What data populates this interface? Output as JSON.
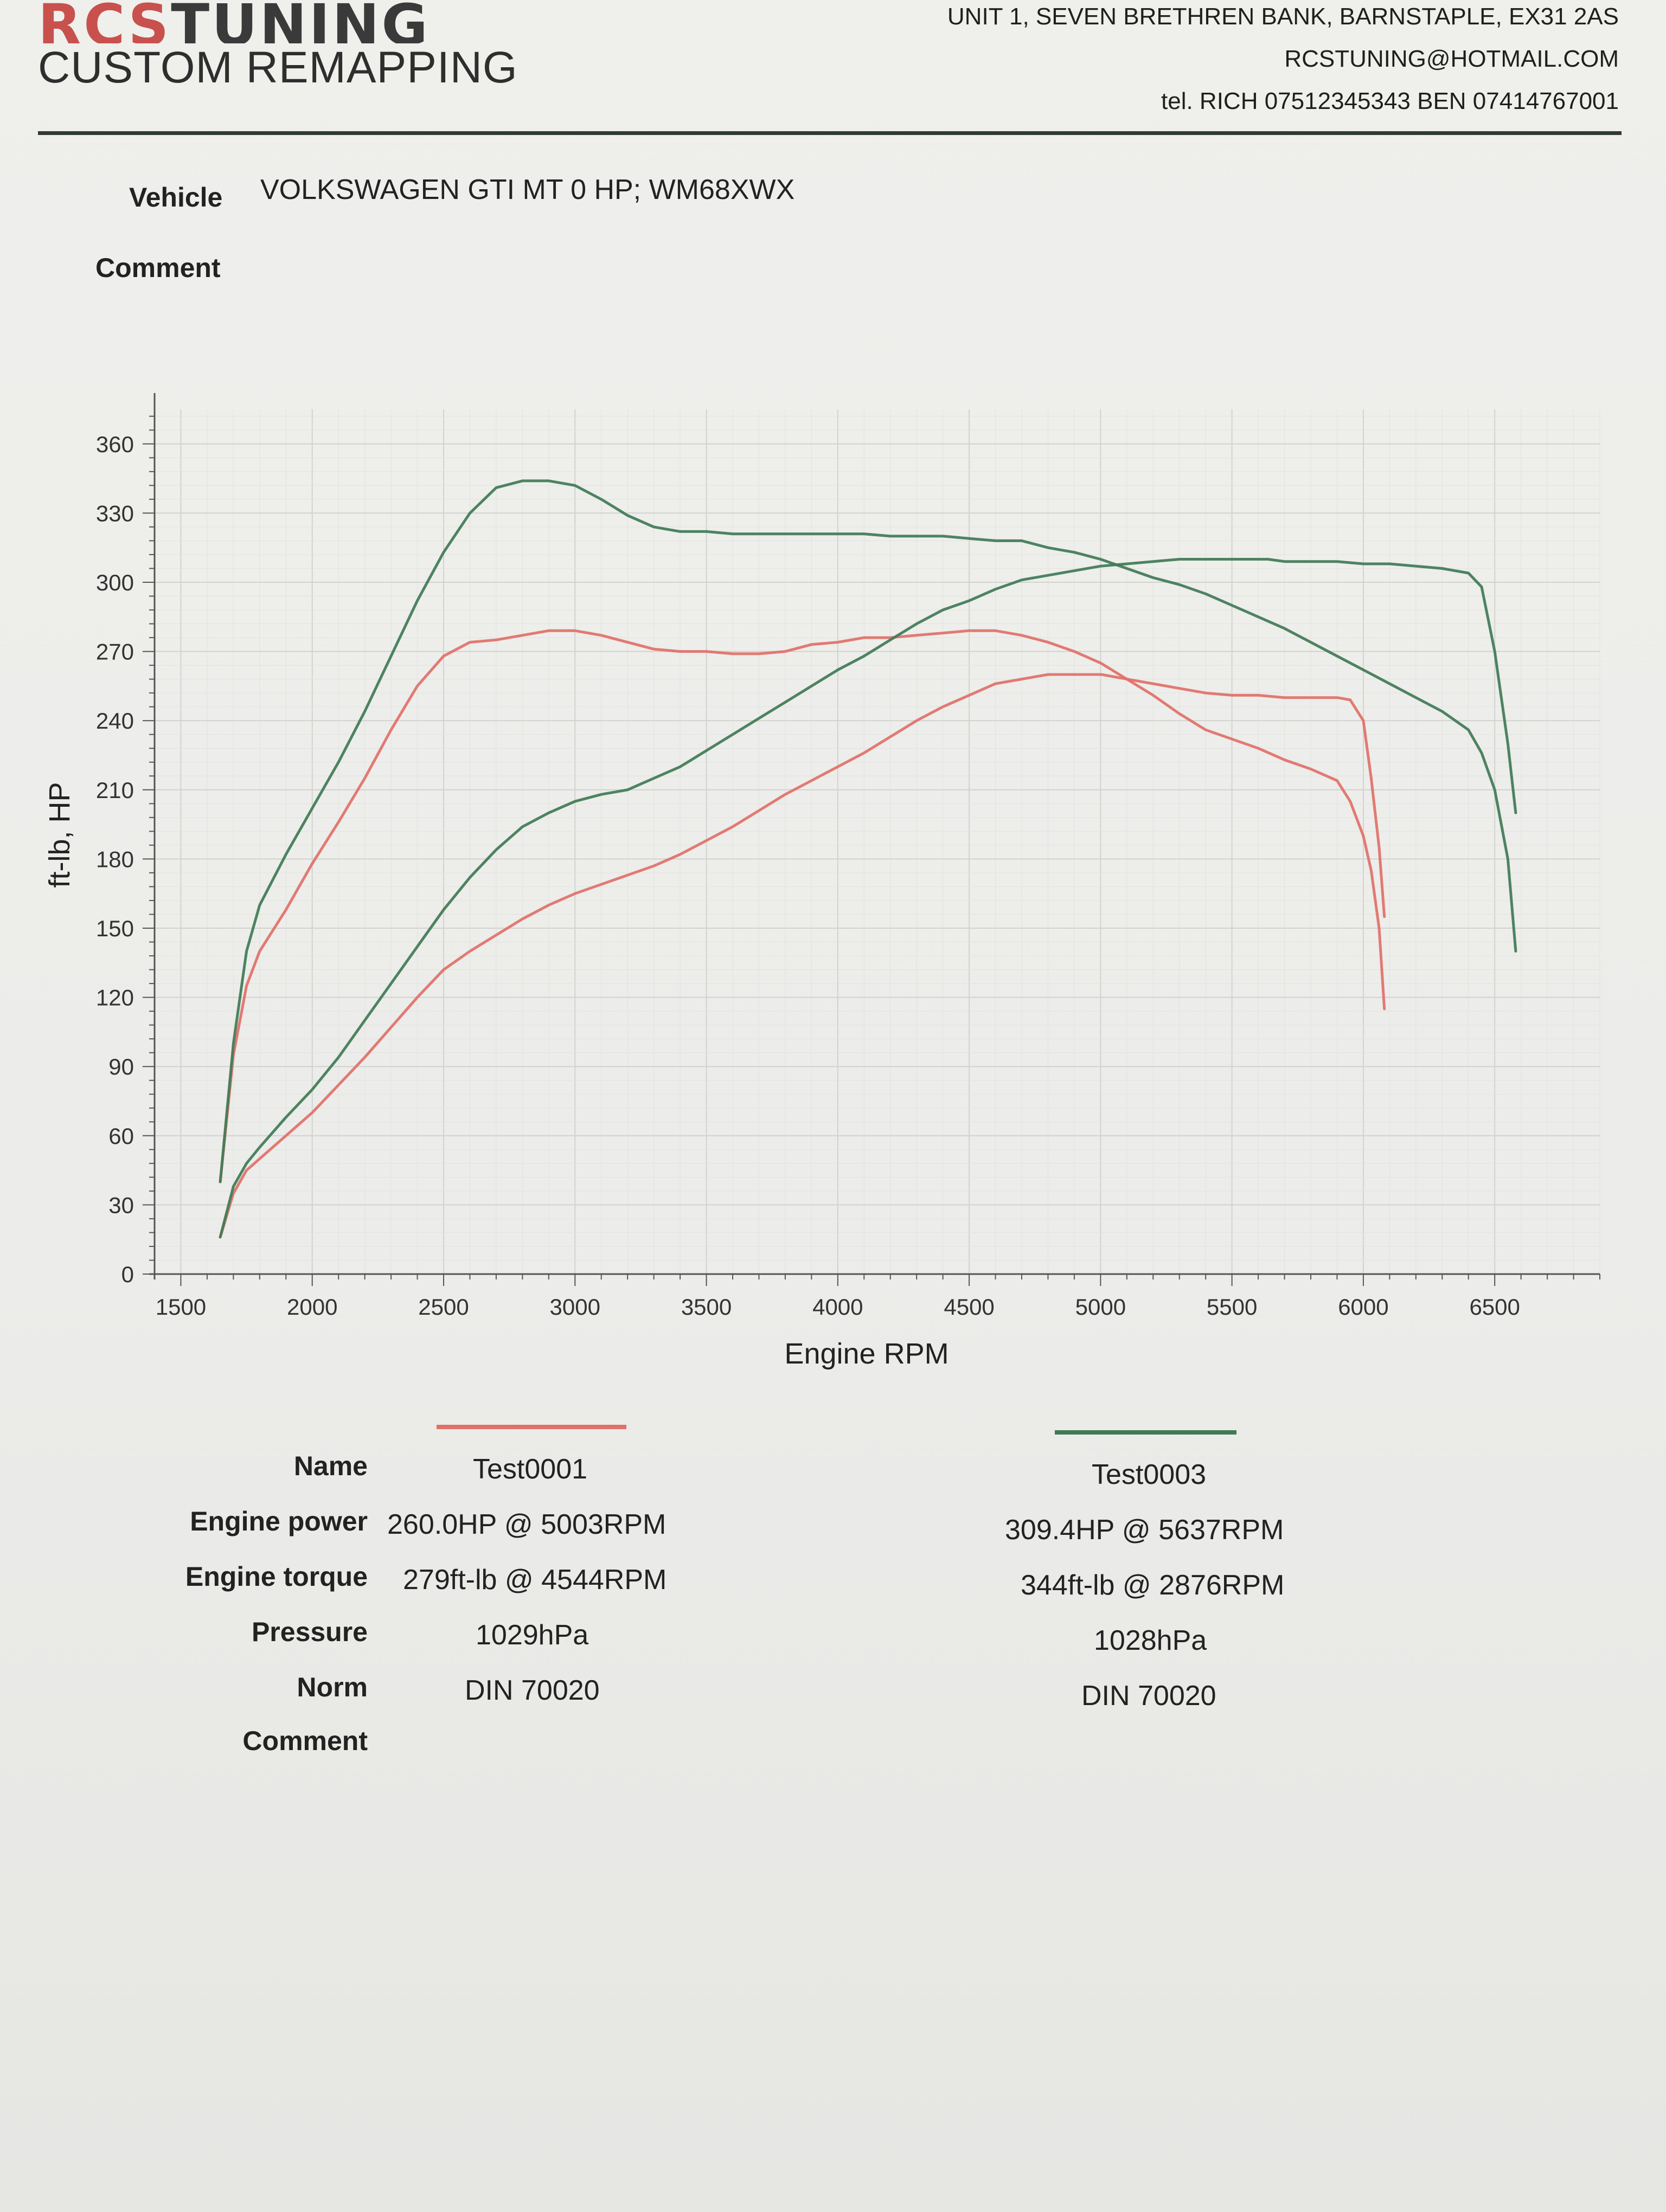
{
  "header": {
    "logo_top_a": "RCS",
    "logo_top_b": "TUNING",
    "logo_sub": "CUSTOM REMAPPING",
    "address_line1": "UNIT 1, SEVEN BRETHREN BANK, BARNSTAPLE, EX31 2AS",
    "address_line2": "RCSTUNING@HOTMAIL.COM",
    "address_line3": "tel. RICH 07512345343 BEN 07414767001"
  },
  "vehicle": {
    "label": "Vehicle",
    "value": "VOLKSWAGEN GTI MT 0 HP; WM68XWX",
    "comment_label": "Comment"
  },
  "colors": {
    "test0001": "#e07068",
    "test0003": "#3f7a55"
  },
  "chart_data": {
    "type": "line",
    "xlabel": "Engine RPM",
    "ylabel": "ft-lb, HP",
    "xlim": [
      1400,
      6900
    ],
    "ylim": [
      0,
      375
    ],
    "xticks": [
      1500,
      2000,
      2500,
      3000,
      3500,
      4000,
      4500,
      5000,
      5500,
      6000,
      6500
    ],
    "yticks": [
      0,
      30,
      60,
      90,
      120,
      150,
      180,
      210,
      240,
      270,
      300,
      330,
      360
    ],
    "grid": true,
    "series": [
      {
        "name": "Test0001",
        "quantity": "torque",
        "color": "#e07068",
        "x": [
          1650,
          1700,
          1750,
          1800,
          1900,
          2000,
          2100,
          2200,
          2300,
          2400,
          2500,
          2600,
          2700,
          2800,
          2900,
          3000,
          3100,
          3200,
          3300,
          3400,
          3500,
          3600,
          3700,
          3800,
          3900,
          4000,
          4100,
          4200,
          4300,
          4400,
          4500,
          4544,
          4600,
          4700,
          4800,
          4900,
          5000,
          5100,
          5200,
          5300,
          5400,
          5500,
          5600,
          5700,
          5800,
          5900,
          5950,
          6000,
          6030,
          6060,
          6080
        ],
        "y": [
          40,
          95,
          125,
          140,
          158,
          178,
          196,
          215,
          236,
          255,
          268,
          274,
          275,
          277,
          279,
          279,
          277,
          274,
          271,
          270,
          270,
          269,
          269,
          270,
          273,
          274,
          276,
          276,
          277,
          278,
          279,
          279,
          279,
          277,
          274,
          270,
          265,
          258,
          251,
          243,
          236,
          232,
          228,
          223,
          219,
          214,
          205,
          190,
          175,
          150,
          115
        ]
      },
      {
        "name": "Test0001",
        "quantity": "power",
        "color": "#e07068",
        "x": [
          1650,
          1700,
          1750,
          1800,
          1900,
          2000,
          2100,
          2200,
          2300,
          2400,
          2500,
          2600,
          2700,
          2800,
          2900,
          3000,
          3100,
          3200,
          3300,
          3400,
          3500,
          3600,
          3700,
          3800,
          3900,
          4000,
          4100,
          4200,
          4300,
          4400,
          4500,
          4600,
          4700,
          4800,
          4900,
          5000,
          5003,
          5100,
          5200,
          5300,
          5400,
          5500,
          5600,
          5700,
          5800,
          5900,
          5950,
          6000,
          6030,
          6060,
          6080
        ],
        "y": [
          16,
          35,
          45,
          50,
          60,
          70,
          82,
          94,
          107,
          120,
          132,
          140,
          147,
          154,
          160,
          165,
          169,
          173,
          177,
          182,
          188,
          194,
          201,
          208,
          214,
          220,
          226,
          233,
          240,
          246,
          251,
          256,
          258,
          260,
          260,
          260,
          260,
          258,
          256,
          254,
          252,
          251,
          251,
          250,
          250,
          250,
          249,
          240,
          215,
          185,
          155
        ]
      },
      {
        "name": "Test0003",
        "quantity": "torque",
        "color": "#3f7a55",
        "x": [
          1650,
          1700,
          1750,
          1800,
          1900,
          2000,
          2100,
          2200,
          2300,
          2400,
          2500,
          2600,
          2700,
          2800,
          2876,
          2900,
          3000,
          3100,
          3200,
          3300,
          3400,
          3500,
          3600,
          3700,
          3800,
          3900,
          4000,
          4100,
          4200,
          4300,
          4400,
          4500,
          4600,
          4700,
          4800,
          4900,
          5000,
          5100,
          5200,
          5300,
          5400,
          5500,
          5600,
          5700,
          5800,
          5900,
          6000,
          6100,
          6200,
          6300,
          6400,
          6450,
          6500,
          6550,
          6580
        ],
        "y": [
          40,
          100,
          140,
          160,
          182,
          202,
          222,
          244,
          268,
          292,
          313,
          330,
          341,
          344,
          344,
          344,
          342,
          336,
          329,
          324,
          322,
          322,
          321,
          321,
          321,
          321,
          321,
          321,
          320,
          320,
          320,
          319,
          318,
          318,
          315,
          313,
          310,
          306,
          302,
          299,
          295,
          290,
          285,
          280,
          274,
          268,
          262,
          256,
          250,
          244,
          236,
          226,
          210,
          180,
          140
        ]
      },
      {
        "name": "Test0003",
        "quantity": "power",
        "color": "#3f7a55",
        "x": [
          1650,
          1700,
          1750,
          1800,
          1900,
          2000,
          2100,
          2200,
          2300,
          2400,
          2500,
          2600,
          2700,
          2800,
          2900,
          3000,
          3100,
          3200,
          3300,
          3400,
          3500,
          3600,
          3700,
          3800,
          3900,
          4000,
          4100,
          4200,
          4300,
          4400,
          4500,
          4600,
          4700,
          4800,
          4900,
          5000,
          5100,
          5200,
          5300,
          5400,
          5500,
          5600,
          5637,
          5700,
          5800,
          5900,
          6000,
          6100,
          6200,
          6300,
          6400,
          6450,
          6500,
          6550,
          6580
        ],
        "y": [
          16,
          38,
          48,
          55,
          68,
          80,
          94,
          110,
          126,
          142,
          158,
          172,
          184,
          194,
          200,
          205,
          208,
          210,
          215,
          220,
          227,
          234,
          241,
          248,
          255,
          262,
          268,
          275,
          282,
          288,
          292,
          297,
          301,
          303,
          305,
          307,
          308,
          309,
          310,
          310,
          310,
          310,
          310,
          309,
          309,
          309,
          308,
          308,
          307,
          306,
          304,
          298,
          270,
          230,
          200
        ]
      }
    ]
  },
  "results": {
    "labels": {
      "name": "Name",
      "power": "Engine power",
      "torque": "Engine torque",
      "pressure": "Pressure",
      "norm": "Norm",
      "comment": "Comment"
    },
    "test0001": {
      "name": "Test0001",
      "power": "260.0HP @  5003RPM",
      "torque": "279ft-lb @ 4544RPM",
      "pressure": "1029hPa",
      "norm": "DIN 70020"
    },
    "test0003": {
      "name": "Test0003",
      "power": "309.4HP @  5637RPM",
      "torque": "344ft-lb @ 2876RPM",
      "pressure": "1028hPa",
      "norm": "DIN 70020"
    }
  }
}
